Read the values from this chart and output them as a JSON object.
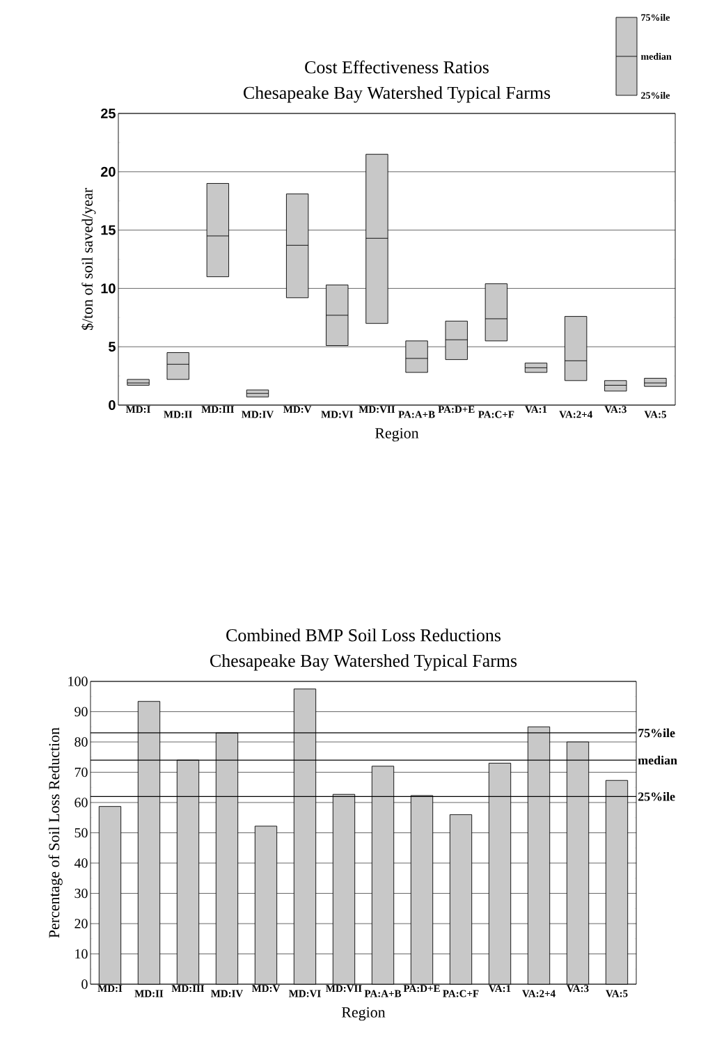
{
  "chart_data": [
    {
      "type": "box",
      "title": "Cost Effectiveness Ratios",
      "subtitle": "Chesapeake Bay Watershed Typical Farms",
      "xlabel": "Region",
      "ylabel": "$/ton of soil saved/year",
      "categories": [
        "MD:I",
        "MD:II",
        "MD:III",
        "MD:IV",
        "MD:V",
        "MD:VI",
        "MD:VII",
        "PA:A+B",
        "PA:D+E",
        "PA:C+F",
        "VA:1",
        "VA:2+4",
        "VA:3",
        "VA:5"
      ],
      "boxes": [
        {
          "low": 1.7,
          "q1": 1.7,
          "median": 1.9,
          "q3": 2.2,
          "high": 2.2
        },
        {
          "low": 2.2,
          "q1": 2.2,
          "median": 3.5,
          "q3": 4.5,
          "high": 4.5
        },
        {
          "low": 11,
          "q1": 11,
          "median": 14.5,
          "q3": 19,
          "high": 19
        },
        {
          "low": 0.7,
          "q1": 0.7,
          "median": 1,
          "q3": 1.3,
          "high": 1.3
        },
        {
          "low": 9.2,
          "q1": 9.2,
          "median": 13.7,
          "q3": 18.1,
          "high": 18.1
        },
        {
          "low": 5.1,
          "q1": 5.1,
          "median": 7.7,
          "q3": 10.3,
          "high": 10.3
        },
        {
          "low": 7,
          "q1": 7,
          "median": 14.3,
          "q3": 21.5,
          "high": 21.5
        },
        {
          "low": 2.8,
          "q1": 2.8,
          "median": 4,
          "q3": 5.5,
          "high": 5.5
        },
        {
          "low": 3.9,
          "q1": 3.9,
          "median": 5.6,
          "q3": 7.2,
          "high": 7.2
        },
        {
          "low": 5.5,
          "q1": 5.5,
          "median": 7.4,
          "q3": 10.4,
          "high": 10.4
        },
        {
          "low": 2.8,
          "q1": 2.8,
          "median": 3.2,
          "q3": 3.6,
          "high": 3.6
        },
        {
          "low": 2.1,
          "q1": 2.1,
          "median": 3.8,
          "q3": 7.6,
          "high": 7.6
        },
        {
          "low": 1.2,
          "q1": 1.2,
          "median": 1.7,
          "q3": 2.1,
          "high": 2.1
        },
        {
          "low": 1.6,
          "q1": 1.6,
          "median": 1.9,
          "q3": 2.3,
          "high": 2.3
        }
      ],
      "color": "#c8c8c8",
      "ylim": [
        0,
        25
      ],
      "yticks": [
        0,
        5,
        10,
        15,
        20,
        25
      ],
      "grid": "y",
      "annotations": [
        "75%ile",
        "median",
        "25%ile"
      ]
    },
    {
      "type": "bar",
      "title": "Combined BMP Soil Loss Reductions",
      "subtitle": "Chesapeake Bay Watershed Typical Farms",
      "xlabel": "Region",
      "ylabel": "Percentage of Soil Loss Reduction",
      "categories": [
        "MD:I",
        "MD:II",
        "MD:III",
        "MD:IV",
        "MD:V",
        "MD:VI",
        "MD:VII",
        "PA:A+B",
        "PA:D+E",
        "PA:C+F",
        "VA:1",
        "VA:2+4",
        "VA:3",
        "VA:5"
      ],
      "values": [
        58.7,
        93.4,
        74,
        83,
        52.2,
        97.5,
        62.7,
        72,
        62.3,
        56,
        73,
        85,
        80,
        67.3
      ],
      "color": "#c8c8c8",
      "ylim": [
        0,
        100
      ],
      "yticks": [
        0,
        10,
        20,
        30,
        40,
        50,
        60,
        70,
        80,
        90,
        100
      ],
      "grid": "y",
      "ref_lines": [
        {
          "axis": "y",
          "value": 83,
          "label": "75%ile"
        },
        {
          "axis": "y",
          "value": 74,
          "label": "median"
        },
        {
          "axis": "y",
          "value": 62,
          "label": "25%ile"
        }
      ]
    }
  ]
}
